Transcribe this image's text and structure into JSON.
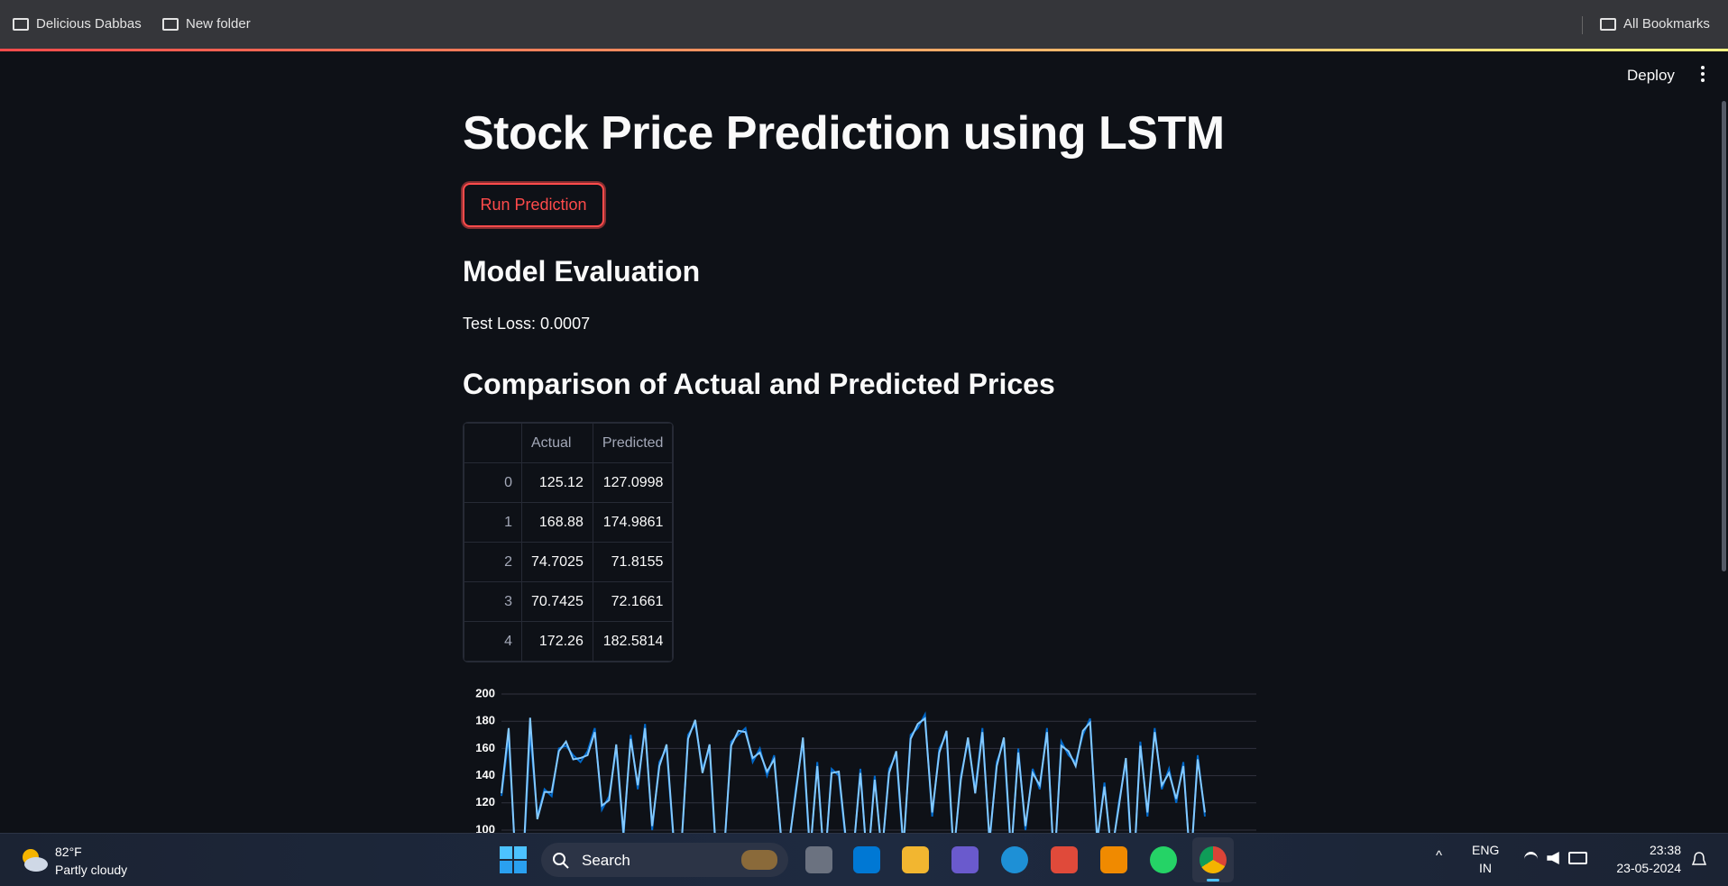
{
  "browser": {
    "bookmarks": [
      "Delicious Dabbas",
      "New folder"
    ],
    "all_bookmarks": "All Bookmarks"
  },
  "app": {
    "deploy": "Deploy",
    "title": "Stock Price Prediction using LSTM",
    "button": "Run Prediction",
    "section1": "Model Evaluation",
    "test_loss": "Test Loss: 0.0007",
    "section2": "Comparison of Actual and Predicted Prices"
  },
  "table": {
    "columns": [
      "Actual",
      "Predicted"
    ],
    "rows": [
      [
        0,
        125.12,
        127.0998
      ],
      [
        1,
        168.88,
        174.9861
      ],
      [
        2,
        74.7025,
        71.8155
      ],
      [
        3,
        70.7425,
        72.1661
      ],
      [
        4,
        172.26,
        182.5814
      ]
    ]
  },
  "chart_data": {
    "type": "line",
    "ylim": [
      100,
      200
    ],
    "yticks": [
      100,
      120,
      140,
      160,
      180,
      200
    ],
    "grid": true,
    "series": [
      {
        "color": "#0068c9",
        "values": [
          125.12,
          168.88,
          74.7,
          70.74,
          172.26,
          110,
          130,
          125,
          160,
          162,
          155,
          150,
          158,
          175,
          115,
          125,
          160,
          95,
          170,
          130,
          178,
          100,
          150,
          160,
          90,
          80,
          170,
          178,
          145,
          160,
          70,
          80,
          165,
          170,
          175,
          150,
          160,
          140,
          155,
          90,
          85,
          130,
          165,
          80,
          150,
          70,
          145,
          140,
          90,
          80,
          145,
          70,
          140,
          80,
          145,
          155,
          85,
          170,
          175,
          185,
          110,
          160,
          170,
          80,
          140,
          165,
          130,
          175,
          90,
          150,
          165,
          80,
          160,
          100,
          145,
          130,
          175,
          70,
          165,
          155,
          150,
          170,
          182,
          90,
          135,
          80,
          120,
          150,
          60,
          165,
          110,
          175,
          130,
          145,
          120,
          150,
          70,
          155,
          110
        ]
      },
      {
        "color": "#83c9ff",
        "values": [
          127.0998,
          174.9861,
          71.8155,
          72.1661,
          182.5814,
          108,
          128,
          128,
          158,
          165,
          152,
          153,
          155,
          172,
          118,
          122,
          163,
          98,
          167,
          133,
          175,
          103,
          147,
          163,
          93,
          83,
          167,
          181,
          142,
          163,
          73,
          83,
          162,
          173,
          172,
          153,
          157,
          143,
          152,
          93,
          88,
          127,
          168,
          83,
          147,
          73,
          142,
          143,
          93,
          83,
          142,
          73,
          137,
          83,
          142,
          158,
          88,
          167,
          178,
          182,
          113,
          157,
          173,
          83,
          137,
          168,
          127,
          172,
          93,
          147,
          168,
          83,
          157,
          103,
          142,
          133,
          172,
          73,
          162,
          158,
          147,
          173,
          179,
          93,
          132,
          83,
          117,
          153,
          63,
          162,
          113,
          172,
          133,
          142,
          123,
          147,
          73,
          152,
          113
        ]
      }
    ]
  },
  "taskbar": {
    "temp": "82°F",
    "weather": "Partly cloudy",
    "search": "Search",
    "lang1": "ENG",
    "lang2": "IN",
    "time": "23:38",
    "date": "23-05-2024"
  }
}
